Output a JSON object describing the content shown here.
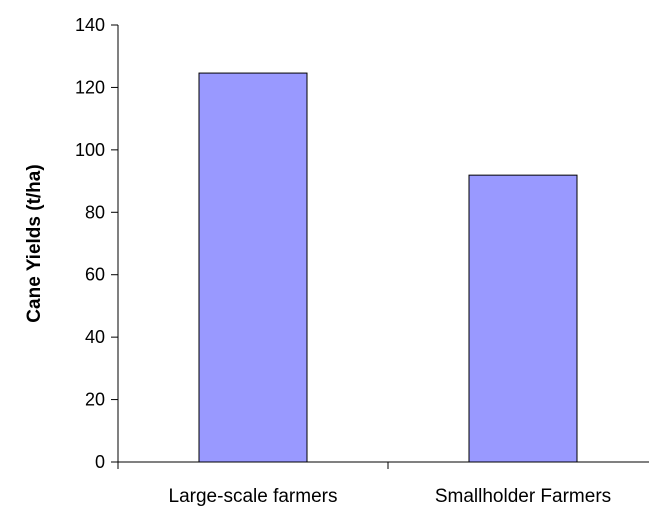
{
  "chart_data": {
    "type": "bar",
    "categories": [
      "Large-scale farmers",
      "Smallholder Farmers"
    ],
    "values": [
      124.6,
      91.9
    ],
    "title": "",
    "xlabel": "",
    "ylabel": "Cane Yields (t/ha)",
    "ylim": [
      0,
      140
    ],
    "yticks": [
      0,
      20,
      40,
      60,
      80,
      100,
      120,
      140
    ],
    "grid": false,
    "legend": "none",
    "bar_color": "#9999ff",
    "bar_edge_color": "#000000"
  }
}
